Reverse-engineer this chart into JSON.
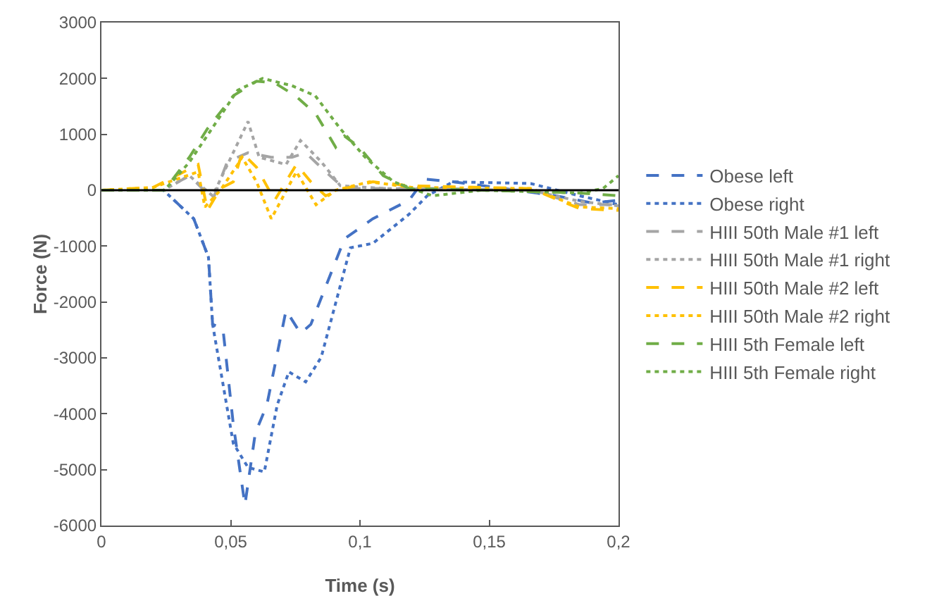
{
  "chart_data": {
    "type": "line",
    "xlabel": "Time (s)",
    "ylabel": "Force (N)",
    "xlim": [
      0,
      0.2
    ],
    "ylim": [
      -6000,
      3000
    ],
    "xticks": [
      0,
      {
        "value": 0.05,
        "label": "0,05"
      },
      {
        "value": 0.1,
        "label": "0,1"
      },
      {
        "value": 0.15,
        "label": "0,15"
      },
      {
        "value": 0.2,
        "label": "0,2"
      }
    ],
    "yticks": [
      -6000,
      -5000,
      -4000,
      -3000,
      -2000,
      -1000,
      0,
      1000,
      2000,
      3000
    ],
    "grid": false,
    "legend": "right",
    "ref_lines": [
      {
        "axis": "y",
        "value": 0,
        "color": "#000000"
      }
    ],
    "series": [
      {
        "name": "Obese left",
        "color": "#4472c4",
        "line_style": "dashed",
        "x": [
          0,
          0.024,
          0.0357,
          0.0414,
          0.043,
          0.047,
          0.051,
          0.0555,
          0.0595,
          0.064,
          0.0714,
          0.077,
          0.081,
          0.094,
          0.105,
          0.119,
          0.125,
          0.136,
          0.156,
          0.176,
          0.19,
          0.2
        ],
        "values": [
          0,
          0,
          -510,
          -1200,
          -2400,
          -2480,
          -4190,
          -5630,
          -4350,
          -3840,
          -2150,
          -2560,
          -2400,
          -870,
          -510,
          -180,
          200,
          150,
          30,
          -100,
          -230,
          -180
        ]
      },
      {
        "name": "Obese right",
        "color": "#4472c4",
        "line_style": "dotted",
        "x": [
          0,
          0.024,
          0.0357,
          0.0414,
          0.043,
          0.051,
          0.0567,
          0.063,
          0.068,
          0.0725,
          0.079,
          0.085,
          0.0963,
          0.105,
          0.119,
          0.126,
          0.136,
          0.166,
          0.185,
          0.2
        ],
        "values": [
          0,
          0,
          -510,
          -1200,
          -2400,
          -4530,
          -4960,
          -5040,
          -3840,
          -3250,
          -3430,
          -2990,
          -1030,
          -950,
          -430,
          -100,
          150,
          120,
          -100,
          -260
        ]
      },
      {
        "name": "HIII 50th Male #1 left",
        "color": "#a5a5a5",
        "line_style": "dashed",
        "x": [
          0,
          0.024,
          0.034,
          0.0397,
          0.043,
          0.0487,
          0.0567,
          0.0657,
          0.0737,
          0.079,
          0.0867,
          0.094,
          0.128,
          0.166,
          0.185,
          0.2
        ],
        "values": [
          0,
          0,
          260,
          0,
          -180,
          510,
          670,
          590,
          590,
          670,
          330,
          30,
          30,
          0,
          -260,
          -260
        ]
      },
      {
        "name": "HIII 50th Male #1 right",
        "color": "#a5a5a5",
        "line_style": "dotted",
        "x": [
          0,
          0.024,
          0.034,
          0.043,
          0.0527,
          0.0567,
          0.061,
          0.0714,
          0.077,
          0.085,
          0.0924,
          0.11,
          0.166,
          0.185,
          0.2
        ],
        "values": [
          0,
          0,
          260,
          -100,
          840,
          1230,
          590,
          460,
          890,
          510,
          80,
          30,
          0,
          -200,
          -280
        ]
      },
      {
        "name": "HIII 50th Male #2 left",
        "color": "#ffc000",
        "line_style": "dashed",
        "x": [
          0,
          0.02,
          0.0374,
          0.041,
          0.046,
          0.051,
          0.0544,
          0.06,
          0.067,
          0.0754,
          0.081,
          0.0867,
          0.094,
          0.105,
          0.119,
          0.166,
          0.185,
          0.2
        ],
        "values": [
          0,
          50,
          460,
          -360,
          30,
          150,
          670,
          410,
          -180,
          460,
          150,
          -100,
          30,
          150,
          80,
          30,
          -330,
          -360
        ]
      },
      {
        "name": "HIII 50th Male #2 right",
        "color": "#ffc000",
        "line_style": "dotted",
        "x": [
          0,
          0.02,
          0.0374,
          0.04,
          0.046,
          0.0527,
          0.0544,
          0.06,
          0.0657,
          0.0754,
          0.083,
          0.0906,
          0.1037,
          0.12,
          0.166,
          0.185,
          0.2
        ],
        "values": [
          0,
          50,
          330,
          -300,
          0,
          460,
          590,
          150,
          -510,
          330,
          -260,
          0,
          150,
          50,
          30,
          -300,
          -330
        ]
      },
      {
        "name": "HIII 5th Female left",
        "color": "#70ad47",
        "line_style": "dashed",
        "x": [
          0,
          0.0244,
          0.034,
          0.041,
          0.051,
          0.06,
          0.067,
          0.075,
          0.083,
          0.0906,
          0.094,
          0.0997,
          0.109,
          0.119,
          0.147,
          0.185,
          0.2
        ],
        "values": [
          0,
          0,
          590,
          1100,
          1690,
          1950,
          1920,
          1690,
          1360,
          770,
          970,
          770,
          260,
          30,
          0,
          -50,
          -100
        ]
      },
      {
        "name": "HIII 5th Female right",
        "color": "#70ad47",
        "line_style": "dotted",
        "x": [
          0,
          0.0244,
          0.034,
          0.0527,
          0.0623,
          0.0737,
          0.0827,
          0.0924,
          0.102,
          0.113,
          0.128,
          0.147,
          0.185,
          0.194,
          0.2
        ],
        "values": [
          0,
          0,
          500,
          1790,
          2000,
          1870,
          1690,
          1100,
          590,
          150,
          -100,
          0,
          -50,
          30,
          260
        ]
      }
    ]
  }
}
